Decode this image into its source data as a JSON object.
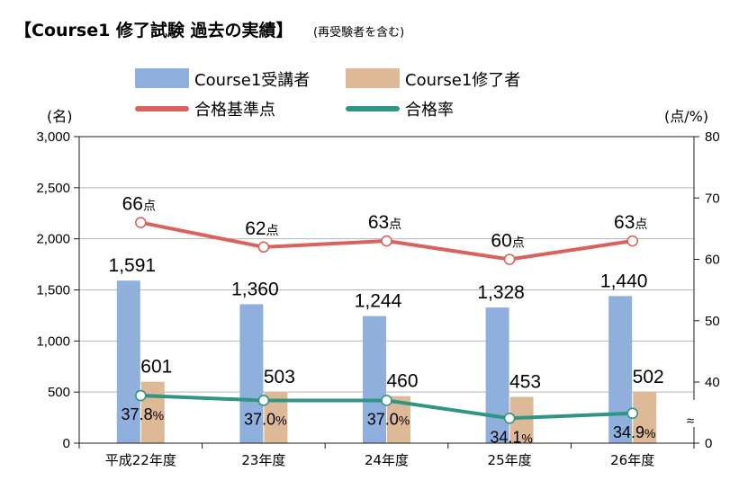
{
  "header": {
    "title": "【Course1 修了試験 過去の実績】",
    "subtitle": "(再受験者を含む)"
  },
  "chart_data": {
    "type": "bar",
    "categories": [
      "平成22年度",
      "23年度",
      "24年度",
      "25年度",
      "26年度"
    ],
    "left_axis": {
      "unit_label": "(名)",
      "ylim": [
        0,
        3000
      ],
      "ticks": [
        "0",
        "500",
        "1,000",
        "1,500",
        "2,000",
        "2,500",
        "3,000"
      ]
    },
    "right_axis": {
      "unit_label": "(点/%)",
      "visible_range": [
        30,
        80
      ],
      "ticks": [
        "0",
        "40",
        "50",
        "60",
        "70",
        "80"
      ],
      "break_symbol": "≈"
    },
    "series": [
      {
        "name": "Course1受講者",
        "kind": "bar",
        "axis": "left",
        "color": "#8fb0dd",
        "values": [
          1591,
          1360,
          1244,
          1328,
          1440
        ],
        "labels": [
          "1,591",
          "1,360",
          "1,244",
          "1,328",
          "1,440"
        ]
      },
      {
        "name": "Course1修了者",
        "kind": "bar",
        "axis": "left",
        "color": "#deb998",
        "values": [
          601,
          503,
          460,
          453,
          502
        ],
        "labels": [
          "601",
          "503",
          "460",
          "453",
          "502"
        ]
      },
      {
        "name": "合格基準点",
        "kind": "line",
        "axis": "right",
        "color": "#d9625c",
        "values": [
          66,
          62,
          63,
          60,
          63
        ],
        "labels": [
          "66",
          "62",
          "63",
          "60",
          "63"
        ],
        "unit": "点"
      },
      {
        "name": "合格率",
        "kind": "line",
        "axis": "right",
        "color": "#2e9683",
        "values": [
          37.8,
          37.0,
          37.0,
          34.1,
          34.9
        ],
        "labels": [
          "37.8",
          "37.0",
          "37.0",
          "34.1",
          "34.9"
        ],
        "unit": "%"
      }
    ],
    "grid": "horizontal",
    "legend_position": "top"
  }
}
